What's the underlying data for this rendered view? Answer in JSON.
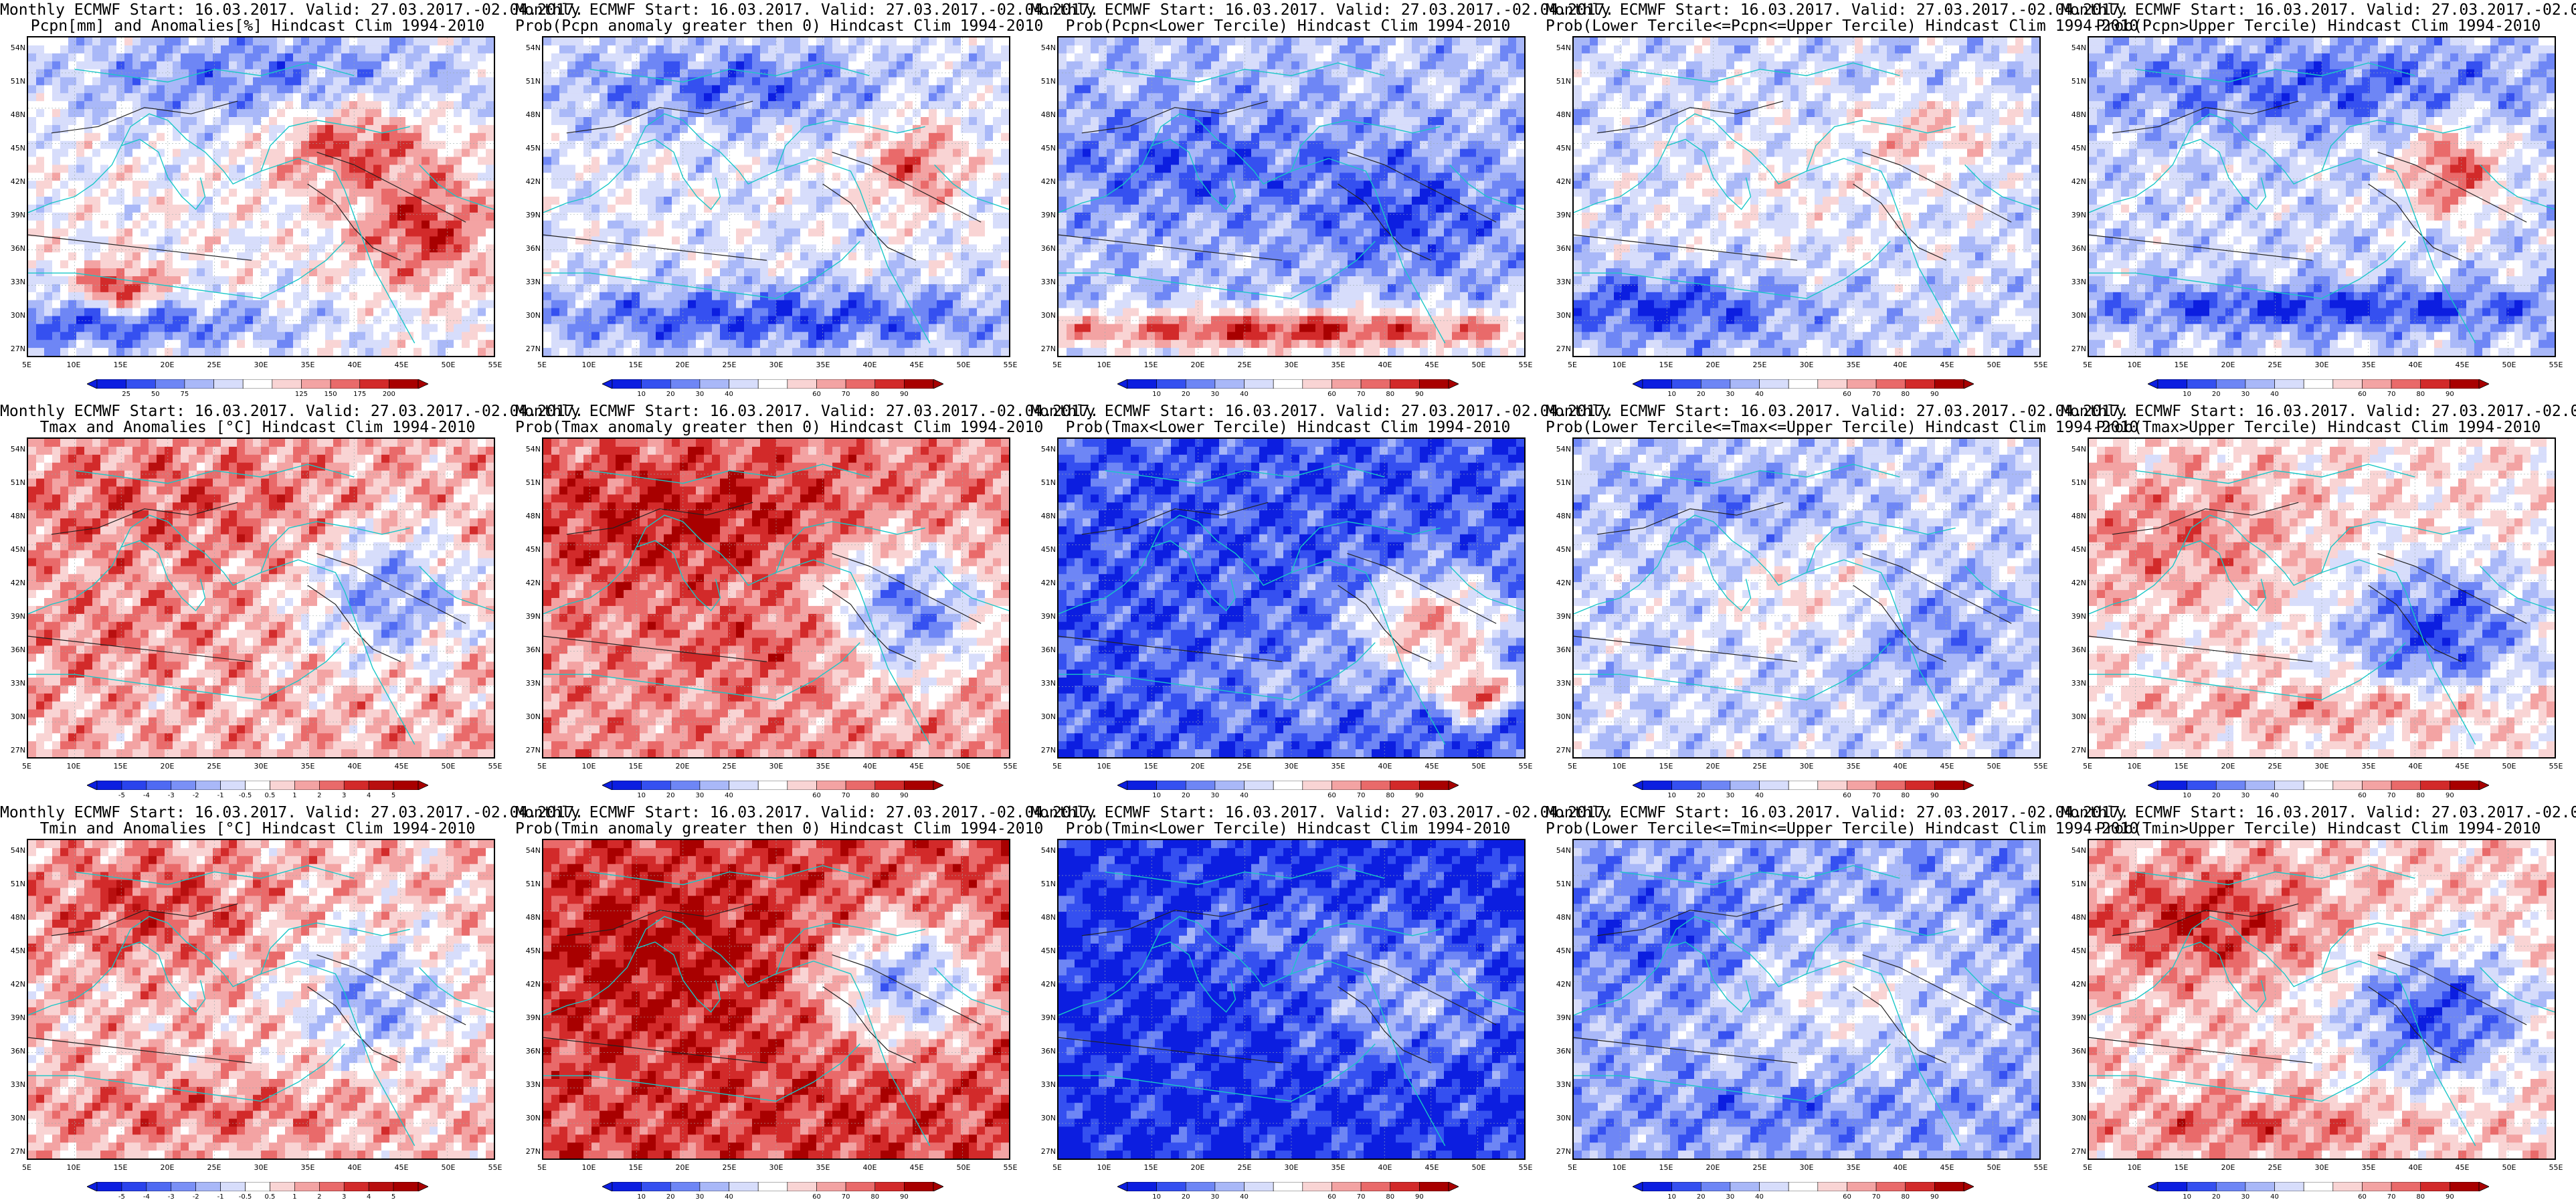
{
  "common_title": "Monthly ECMWF Start: 16.03.2017. Valid: 27.03.2017.-02.04.2017.",
  "lat_ticks": [
    "54N",
    "51N",
    "48N",
    "45N",
    "42N",
    "39N",
    "36N",
    "33N",
    "30N",
    "27N"
  ],
  "lon_ticks": [
    "5E",
    "10E",
    "15E",
    "20E",
    "25E",
    "30E",
    "35E",
    "40E",
    "45E",
    "50E",
    "55E"
  ],
  "scales": {
    "pcpn_anom": {
      "labels": [
        "25",
        "50",
        "75",
        "125",
        "150",
        "175",
        "200"
      ],
      "colors": [
        "#0c1ee0",
        "#3550f0",
        "#6e86f5",
        "#a9b8f8",
        "#d7ddfb",
        "#ffffff",
        "#f9d4d4",
        "#f3a3a3",
        "#e96a6a",
        "#d22a2a",
        "#a80000"
      ]
    },
    "prob": {
      "labels": [
        "10",
        "20",
        "30",
        "40",
        "60",
        "70",
        "80",
        "90"
      ],
      "colors": [
        "#0c1ee0",
        "#3550f0",
        "#6e86f5",
        "#a9b8f8",
        "#d7ddfb",
        "#ffffff",
        "#f9d4d4",
        "#f3a3a3",
        "#e96a6a",
        "#d22a2a",
        "#a80000"
      ]
    },
    "temp_anom": {
      "labels": [
        "-5",
        "-4",
        "-3",
        "-2",
        "-1",
        "-0.5",
        "0.5",
        "1",
        "2",
        "3",
        "4",
        "5"
      ],
      "colors": [
        "#0c1ee0",
        "#2a43ec",
        "#4f6af2",
        "#7a90f6",
        "#a9b8f8",
        "#d7ddfb",
        "#ffffff",
        "#f9d4d4",
        "#f3a3a3",
        "#e96a6a",
        "#d22a2a",
        "#b80f0f",
        "#a80000"
      ]
    }
  },
  "panels": [
    {
      "id": "pcpn-anom",
      "row": 0,
      "col": 0,
      "title2": "Pcpn[mm] and Anomalies[%] Hindcast Clim 1994-2010",
      "scale": "pcpn_anom",
      "field": "pcpn_anom",
      "colorbar": true
    },
    {
      "id": "pcpn-prob-gt0",
      "row": 0,
      "col": 1,
      "title2": "Prob(Pcpn anomaly greater then 0) Hindcast Clim 1994-2010",
      "scale": "prob",
      "field": "pcpn_prob",
      "colorbar": true
    },
    {
      "id": "pcpn-prob-lower",
      "row": 0,
      "col": 2,
      "title2": "Prob(Pcpn<Lower Tercile) Hindcast Clim 1994-2010",
      "scale": "prob",
      "field": "pcpn_lower",
      "colorbar": true
    },
    {
      "id": "pcpn-prob-middle",
      "row": 0,
      "col": 3,
      "title2": "Prob(Lower Tercile<=Pcpn<=Upper Tercile) Hindcast Clim 1994-2010",
      "scale": "prob",
      "field": "pcpn_middle",
      "colorbar": true
    },
    {
      "id": "pcpn-prob-upper",
      "row": 0,
      "col": 4,
      "title2": "Prob(Pcpn>Upper Tercile) Hindcast Clim 1994-2010",
      "scale": "prob",
      "field": "pcpn_upper",
      "colorbar": true
    },
    {
      "id": "tmax-anom",
      "row": 1,
      "col": 0,
      "title2": "Tmax and Anomalies [°C] Hindcast Clim 1994-2010",
      "scale": "temp_anom",
      "field": "tmax_anom",
      "colorbar": true
    },
    {
      "id": "tmax-prob-gt0",
      "row": 1,
      "col": 1,
      "title2": "Prob(Tmax anomaly greater then 0) Hindcast Clim 1994-2010",
      "scale": "prob",
      "field": "tmax_prob",
      "colorbar": true
    },
    {
      "id": "tmax-prob-lower",
      "row": 1,
      "col": 2,
      "title2": "Prob(Tmax<Lower Tercile) Hindcast Clim 1994-2010",
      "scale": "prob",
      "field": "tmax_lower",
      "colorbar": true
    },
    {
      "id": "tmax-prob-middle",
      "row": 1,
      "col": 3,
      "title2": "Prob(Lower Tercile<=Tmax<=Upper Tercile) Hindcast Clim 1994-2010",
      "scale": "prob",
      "field": "tmax_middle",
      "colorbar": true
    },
    {
      "id": "tmax-prob-upper",
      "row": 1,
      "col": 4,
      "title2": "Prob(Tmax>Upper Tercile) Hindcast Clim 1994-2010",
      "scale": "prob",
      "field": "tmax_upper",
      "colorbar": true
    },
    {
      "id": "tmin-anom",
      "row": 2,
      "col": 0,
      "title2": "Tmin and Anomalies [°C] Hindcast Clim 1994-2010",
      "scale": "temp_anom",
      "field": "tmin_anom",
      "colorbar": true
    },
    {
      "id": "tmin-prob-gt0",
      "row": 2,
      "col": 1,
      "title2": "Prob(Tmin anomaly greater then 0) Hindcast Clim 1994-2010",
      "scale": "prob",
      "field": "tmin_prob",
      "colorbar": true
    },
    {
      "id": "tmin-prob-lower",
      "row": 2,
      "col": 2,
      "title2": "Prob(Tmin<Lower Tercile) Hindcast Clim 1994-2010",
      "scale": "prob",
      "field": "tmin_lower",
      "colorbar": true
    },
    {
      "id": "tmin-prob-middle",
      "row": 2,
      "col": 3,
      "title2": "Prob(Lower Tercile<=Tmin<=Upper Tercile) Hindcast Clim 1994-2010",
      "scale": "prob",
      "field": "tmin_middle",
      "colorbar": true
    },
    {
      "id": "tmin-prob-upper",
      "row": 2,
      "col": 4,
      "title2": "Prob(Tmin>Upper Tercile) Hindcast Clim 1994-2010",
      "scale": "prob",
      "field": "tmin_upper",
      "colorbar": true
    }
  ]
}
